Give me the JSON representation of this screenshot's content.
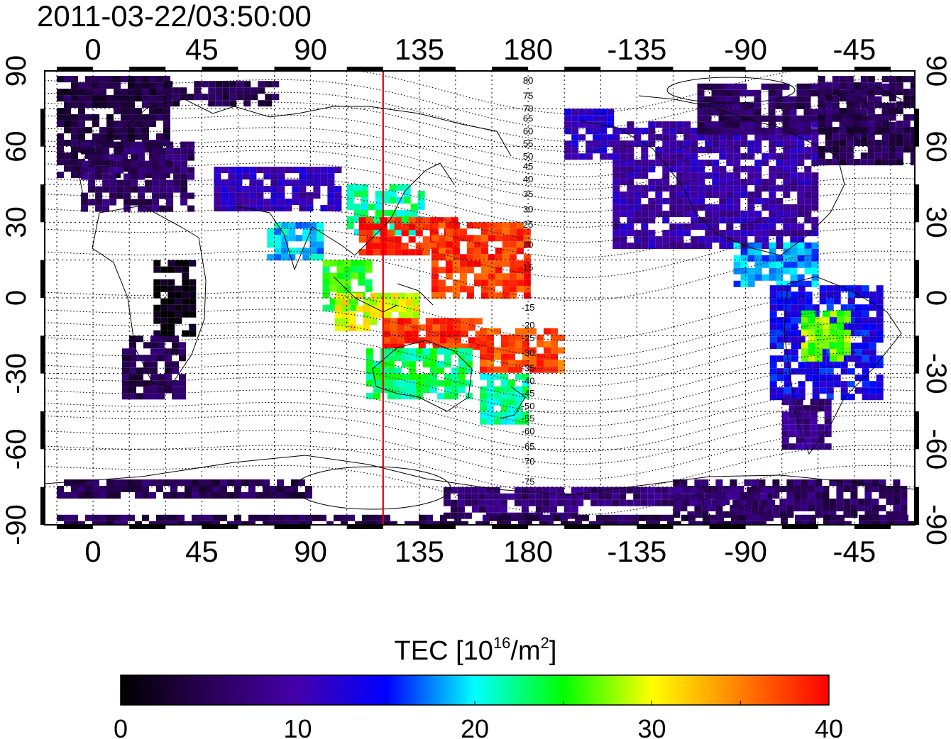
{
  "header": {
    "timestamp": "2011-03-22/03:50:00"
  },
  "map": {
    "projection": "equirectangular",
    "lon_range": [
      -20,
      340
    ],
    "lat_range": [
      -90,
      90
    ],
    "x_tick_labels": [
      "0",
      "45",
      "90",
      "135",
      "180",
      "-135",
      "-90",
      "-45"
    ],
    "x_tick_lons": [
      0,
      45,
      90,
      135,
      180,
      225,
      270,
      315
    ],
    "y_tick_labels": [
      "90",
      "60",
      "30",
      "0",
      "-30",
      "-60",
      "-90"
    ],
    "y_tick_lats": [
      90,
      60,
      30,
      0,
      -30,
      -60,
      -90
    ],
    "grid": "dotted every 15 degrees",
    "marker_line_lon": 120,
    "marker_line_color": "#dd0000",
    "contour_labels": [
      {
        "text": "80",
        "lat": 86
      },
      {
        "text": "75",
        "lat": 80
      },
      {
        "text": "70",
        "lat": 75
      },
      {
        "text": "65",
        "lat": 71
      },
      {
        "text": "60",
        "lat": 66
      },
      {
        "text": "55",
        "lat": 61
      },
      {
        "text": "50",
        "lat": 56
      },
      {
        "text": "45",
        "lat": 52
      },
      {
        "text": "40",
        "lat": 47
      },
      {
        "text": "35",
        "lat": 41
      },
      {
        "text": "30",
        "lat": 35
      },
      {
        "text": "25",
        "lat": 29
      },
      {
        "text": "20",
        "lat": 21
      },
      {
        "text": "15",
        "lat": 12
      },
      {
        "text": "-15",
        "lat": -4
      },
      {
        "text": "-20",
        "lat": -11
      },
      {
        "text": "-25",
        "lat": -16
      },
      {
        "text": "-30",
        "lat": -22
      },
      {
        "text": "-35",
        "lat": -28
      },
      {
        "text": "-40",
        "lat": -33
      },
      {
        "text": "-45",
        "lat": -38
      },
      {
        "text": "-50",
        "lat": -43
      },
      {
        "text": "-55",
        "lat": -48
      },
      {
        "text": "-60",
        "lat": -53
      },
      {
        "text": "-65",
        "lat": -59
      },
      {
        "text": "-70",
        "lat": -65
      },
      {
        "text": "-75",
        "lat": -73
      }
    ]
  },
  "colorbar": {
    "title_main": "TEC  [10",
    "title_sup": "16",
    "title_mid": "/m",
    "title_sup2": "2",
    "title_end": "]",
    "min": 0,
    "max": 40,
    "tick_values": [
      0,
      10,
      20,
      30,
      40
    ],
    "tick_labels": [
      "0",
      "10",
      "20",
      "30",
      "40"
    ],
    "stops": [
      "#000000",
      "#2a0055",
      "#4400aa",
      "#0000ff",
      "#00ffff",
      "#00ff00",
      "#ffff00",
      "#ff7f00",
      "#ff0000"
    ]
  },
  "tec_regions": [
    {
      "name": "siberia-north-europe",
      "lon": [
        -15,
        30
      ],
      "lat": [
        50,
        88
      ],
      "tec": 4
    },
    {
      "name": "europe",
      "lon": [
        -5,
        40
      ],
      "lat": [
        35,
        62
      ],
      "tec": 6
    },
    {
      "name": "arctic-strip",
      "lon": [
        30,
        75
      ],
      "lat": [
        76,
        86
      ],
      "tec": 5
    },
    {
      "name": "mid-asia",
      "lon": [
        50,
        100
      ],
      "lat": [
        35,
        52
      ],
      "tec": 11
    },
    {
      "name": "africa-east",
      "lon": [
        25,
        40
      ],
      "lat": [
        -15,
        15
      ],
      "tec": 1
    },
    {
      "name": "africa-south",
      "lon": [
        12,
        38
      ],
      "lat": [
        -40,
        -15
      ],
      "tec": 5
    },
    {
      "name": "india",
      "lon": [
        72,
        95
      ],
      "lat": [
        15,
        30
      ],
      "tec": 19
    },
    {
      "name": "china",
      "lon": [
        105,
        135
      ],
      "lat": [
        25,
        45
      ],
      "tec": 22
    },
    {
      "name": "east-asia-red",
      "lon": [
        110,
        150
      ],
      "lat": [
        18,
        32
      ],
      "tec": 39
    },
    {
      "name": "se-asia",
      "lon": [
        95,
        115
      ],
      "lat": [
        -5,
        15
      ],
      "tec": 25
    },
    {
      "name": "indonesia",
      "lon": [
        100,
        135
      ],
      "lat": [
        -12,
        2
      ],
      "tec": 30
    },
    {
      "name": "pacific-red-north",
      "lon": [
        140,
        180
      ],
      "lat": [
        0,
        30
      ],
      "tec": 38
    },
    {
      "name": "north-australia-red",
      "lon": [
        120,
        160
      ],
      "lat": [
        -20,
        -8
      ],
      "tec": 38
    },
    {
      "name": "coral-red",
      "lon": [
        160,
        195
      ],
      "lat": [
        -28,
        -12
      ],
      "tec": 37
    },
    {
      "name": "australia",
      "lon": [
        113,
        155
      ],
      "lat": [
        -40,
        -20
      ],
      "tec": 23
    },
    {
      "name": "new-zealand",
      "lon": [
        160,
        180
      ],
      "lat": [
        -50,
        -30
      ],
      "tec": 22
    },
    {
      "name": "alaska",
      "lon": [
        195,
        215
      ],
      "lat": [
        55,
        75
      ],
      "tec": 12
    },
    {
      "name": "north-america",
      "lon": [
        215,
        300
      ],
      "lat": [
        20,
        70
      ],
      "tec": 10
    },
    {
      "name": "canada-north",
      "lon": [
        250,
        330
      ],
      "lat": [
        65,
        85
      ],
      "tec": 6
    },
    {
      "name": "greenland-atlantic",
      "lon": [
        300,
        340
      ],
      "lat": [
        55,
        88
      ],
      "tec": 5
    },
    {
      "name": "central-america",
      "lon": [
        265,
        300
      ],
      "lat": [
        5,
        22
      ],
      "tec": 18
    },
    {
      "name": "south-america",
      "lon": [
        280,
        325
      ],
      "lat": [
        -40,
        5
      ],
      "tec": 14
    },
    {
      "name": "sa-center-yellow",
      "lon": [
        293,
        312
      ],
      "lat": [
        -25,
        -5
      ],
      "tec": 27
    },
    {
      "name": "patagonia",
      "lon": [
        285,
        305
      ],
      "lat": [
        -60,
        -40
      ],
      "tec": 8
    },
    {
      "name": "antarctica-east",
      "lon": [
        145,
        200
      ],
      "lat": [
        -87,
        -75
      ],
      "tec": 7
    },
    {
      "name": "antarctica-west",
      "lon": [
        240,
        335
      ],
      "lat": [
        -87,
        -72
      ],
      "tec": 6
    },
    {
      "name": "antarctica-coast",
      "lon": [
        200,
        280
      ],
      "lat": [
        -82,
        -75
      ],
      "tec": 7
    },
    {
      "name": "antarctica-strip",
      "lon": [
        -15,
        340
      ],
      "lat": [
        -90,
        -86
      ],
      "tec": 5
    },
    {
      "name": "antarctica-left",
      "lon": [
        -15,
        90
      ],
      "lat": [
        -78,
        -72
      ],
      "tec": 5
    }
  ]
}
